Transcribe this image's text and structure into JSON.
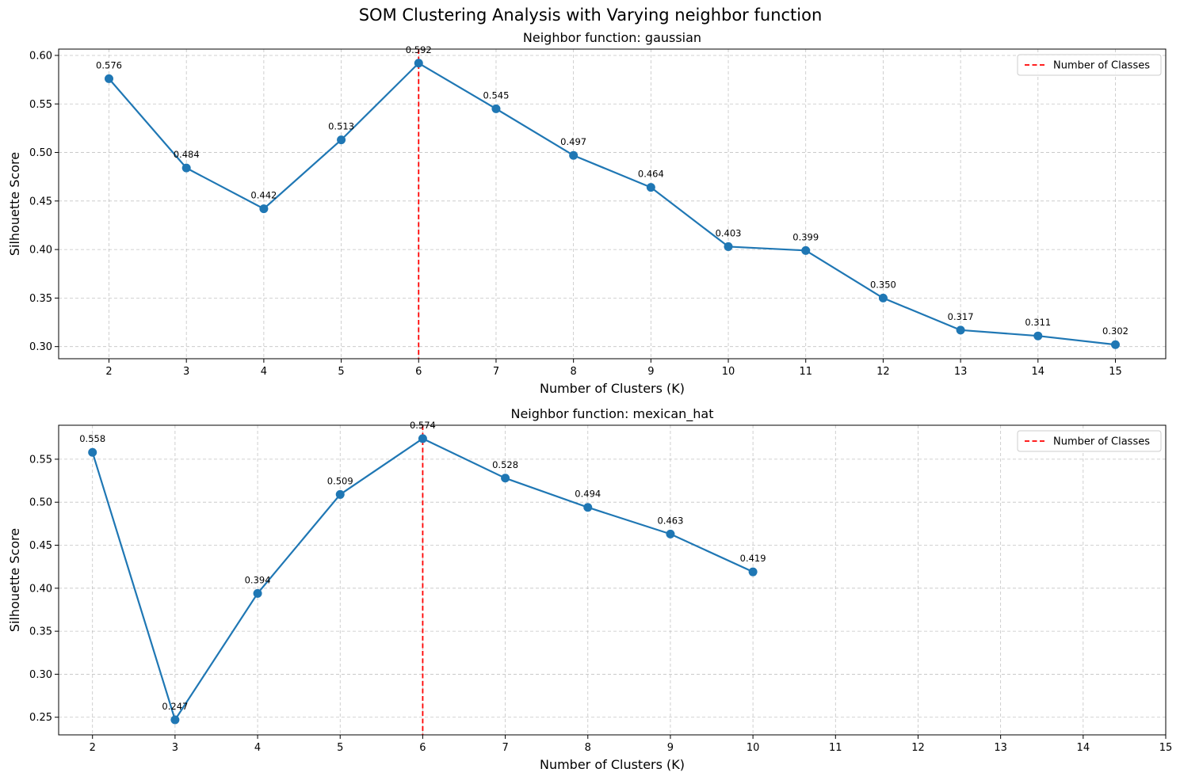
{
  "figure": {
    "title": "SOM Clustering Analysis with Varying neighbor function"
  },
  "chart_data": [
    {
      "type": "line",
      "title": "Neighbor function: gaussian",
      "xlabel": "Number of Clusters (K)",
      "ylabel": "Silhouette Score",
      "x": [
        2,
        3,
        4,
        5,
        6,
        7,
        8,
        9,
        10,
        11,
        12,
        13,
        14,
        15
      ],
      "values": [
        0.576,
        0.484,
        0.442,
        0.513,
        0.592,
        0.545,
        0.497,
        0.464,
        0.403,
        0.399,
        0.35,
        0.317,
        0.311,
        0.302
      ],
      "data_labels": [
        "0.576",
        "0.484",
        "0.442",
        "0.513",
        "0.592",
        "0.545",
        "0.497",
        "0.464",
        "0.403",
        "0.399",
        "0.350",
        "0.317",
        "0.311",
        "0.302"
      ],
      "xlim": [
        1.35,
        15.65
      ],
      "ylim": [
        0.2875,
        0.6065
      ],
      "xticks": [
        2,
        3,
        4,
        5,
        6,
        7,
        8,
        9,
        10,
        11,
        12,
        13,
        14,
        15
      ],
      "yticks": [
        0.3,
        0.35,
        0.4,
        0.45,
        0.5,
        0.55,
        0.6
      ],
      "ytick_labels": [
        "0.30",
        "0.35",
        "0.40",
        "0.45",
        "0.50",
        "0.55",
        "0.60"
      ],
      "reference_line": {
        "x": 6,
        "label": "Number of Classes",
        "color": "#ff0000"
      },
      "series_color": "#1f77b4",
      "grid": true,
      "legend_position": "top-right"
    },
    {
      "type": "line",
      "title": "Neighbor function: mexican_hat",
      "xlabel": "Number of Clusters (K)",
      "ylabel": "Silhouette Score",
      "x": [
        2,
        3,
        4,
        5,
        6,
        7,
        8,
        9,
        10
      ],
      "values": [
        0.558,
        0.247,
        0.394,
        0.509,
        0.574,
        0.528,
        0.494,
        0.463,
        0.419
      ],
      "data_labels": [
        "0.558",
        "0.247",
        "0.394",
        "0.509",
        "0.574",
        "0.528",
        "0.494",
        "0.463",
        "0.419"
      ],
      "xlim": [
        1.59,
        15.0
      ],
      "ylim": [
        0.2295,
        0.5895
      ],
      "xticks": [
        2,
        3,
        4,
        5,
        6,
        7,
        8,
        9,
        10,
        11,
        12,
        13,
        14,
        15
      ],
      "yticks": [
        0.25,
        0.3,
        0.35,
        0.4,
        0.45,
        0.5,
        0.55
      ],
      "ytick_labels": [
        "0.25",
        "0.30",
        "0.35",
        "0.40",
        "0.45",
        "0.50",
        "0.55"
      ],
      "reference_line": {
        "x": 6,
        "label": "Number of Classes",
        "color": "#ff0000"
      },
      "series_color": "#1f77b4",
      "grid": true,
      "legend_position": "top-right"
    }
  ]
}
